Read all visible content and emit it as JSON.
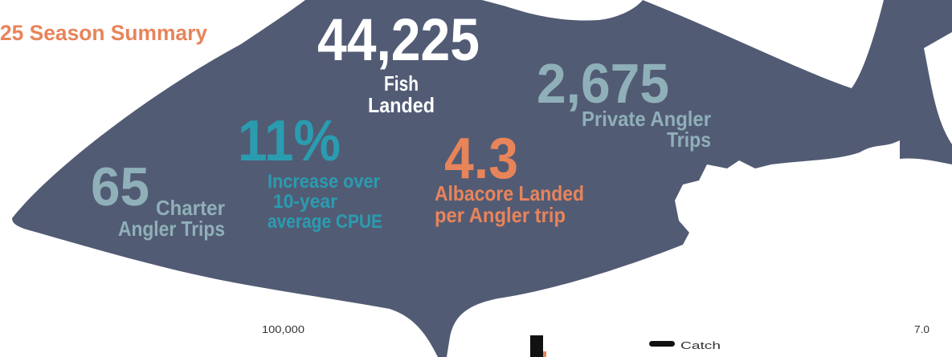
{
  "header": {
    "subtitle": "25 Season Summary"
  },
  "stats": [
    {
      "value": "44,225",
      "label": [
        "Fish",
        "Landed"
      ]
    },
    {
      "value": "2,675",
      "label": [
        "Private Angler",
        "Trips"
      ]
    },
    {
      "value": "11%",
      "label": [
        "Increase over",
        "10-year",
        "average CPUE"
      ]
    },
    {
      "value": "4.3",
      "label": [
        "Albacore Landed",
        "per Angler trip"
      ]
    },
    {
      "value": "65",
      "label": [
        "Charter",
        "Angler Trips"
      ]
    }
  ],
  "chart_fragment": {
    "y_tick": "100,000",
    "y2_tick": "7.0",
    "legend": [
      "Catch"
    ]
  }
}
